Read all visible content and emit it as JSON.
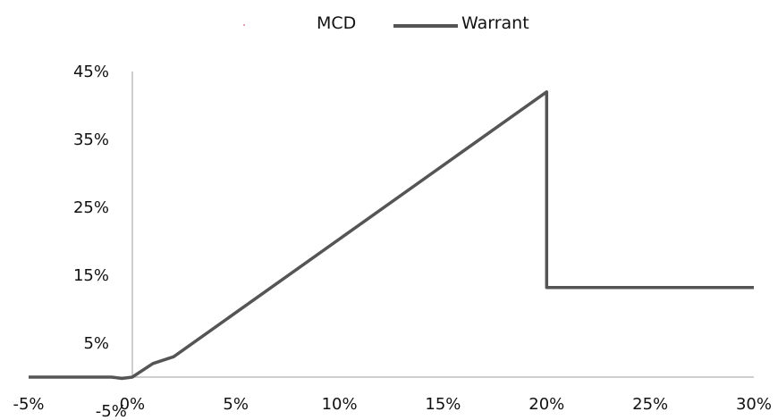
{
  "chart_data": {
    "type": "line",
    "x_axis": {
      "ticks": [
        "-5%",
        "0%",
        "5%",
        "10%",
        "15%",
        "20%",
        "25%",
        "30%"
      ],
      "extra_label": "-5%",
      "xlim": [
        -5,
        30
      ]
    },
    "y_axis": {
      "ticks": [
        "5%",
        "15%",
        "25%",
        "35%",
        "45%"
      ],
      "ylim": [
        0,
        45
      ]
    },
    "legend_position": "top-center",
    "grid": false,
    "series": [
      {
        "name": "MCD",
        "color": "#e8a0b4",
        "x": [],
        "y": []
      },
      {
        "name": "Warrant",
        "color": "#555555",
        "x": [
          -5,
          -1,
          -0.5,
          0,
          1,
          2,
          20,
          20,
          30
        ],
        "y": [
          0,
          0,
          -0.2,
          0,
          2,
          3,
          42,
          13.2,
          13.2
        ]
      }
    ]
  }
}
